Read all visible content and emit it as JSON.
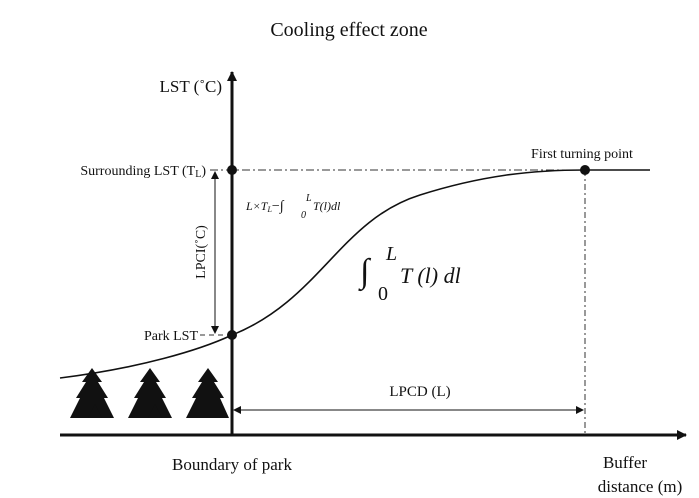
{
  "title": "Cooling effect zone",
  "y_axis_label": "LST (˚C)",
  "x_axis_label": {
    "line1": "Buffer",
    "line2": "distance (m)"
  },
  "x_origin_label": "Boundary of park",
  "surrounding_lst": {
    "text": "Surrounding LST (T",
    "subscript": "L",
    "close": ")"
  },
  "park_lst": "Park LST",
  "lpci": "LPCI(˚C)",
  "lpcd": "LPCD (L)",
  "turning_point": "First turning point",
  "formula_small": {
    "lead": "L×T",
    "lead_sub": "L",
    "integral": "−∫",
    "upper": "L",
    "lower": "0",
    "integrand": "T(l)dl"
  },
  "formula_large": {
    "integral": "∫",
    "upper": "L",
    "lower": "0",
    "integrand": "T (l) dl"
  }
}
